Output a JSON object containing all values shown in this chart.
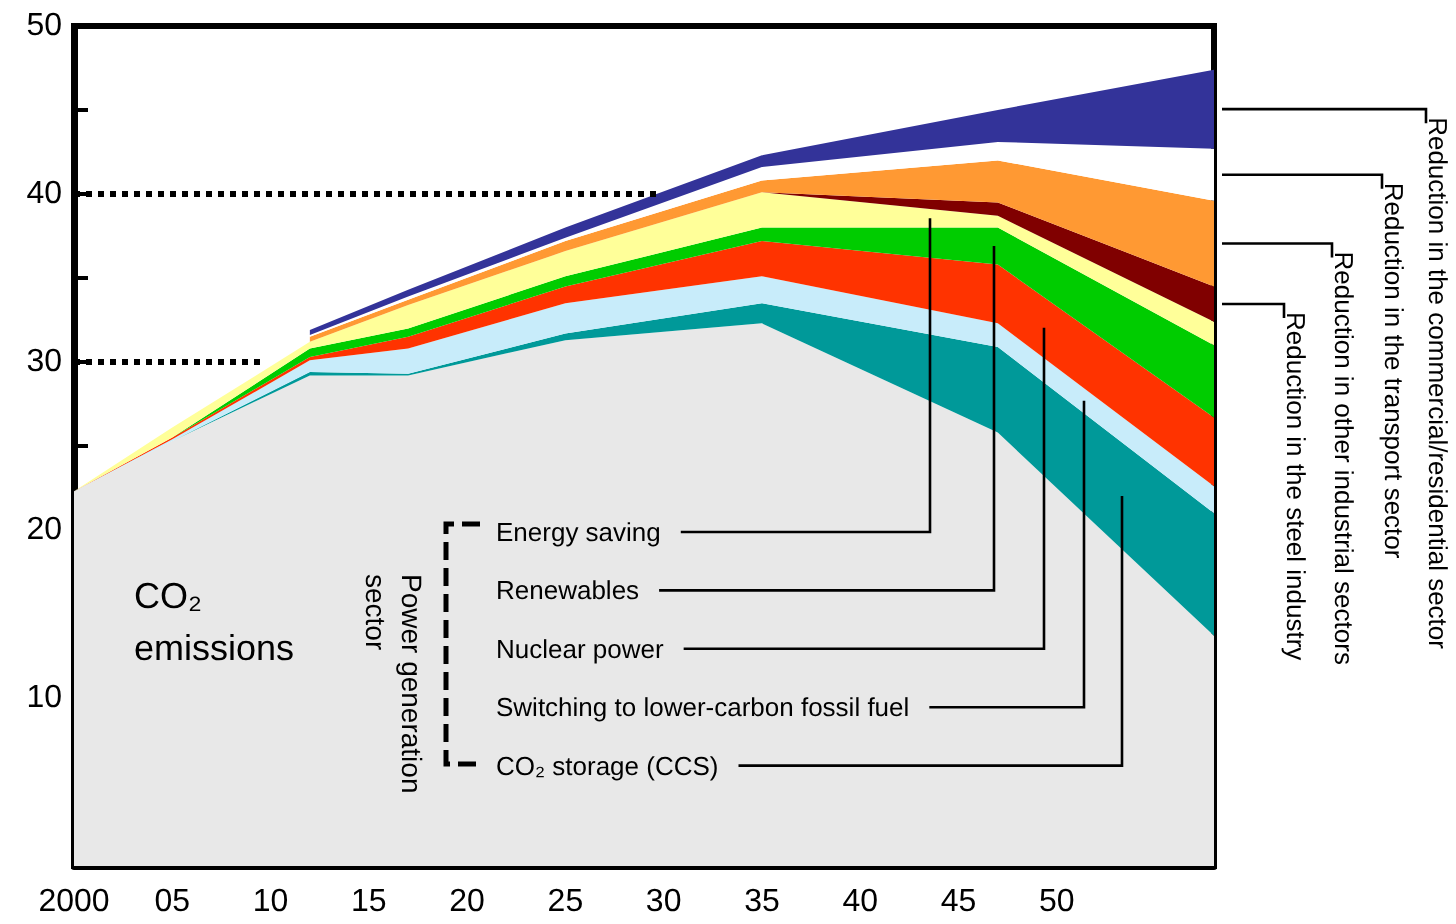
{
  "chart_data": {
    "type": "area",
    "stacked": true,
    "x": [
      2000,
      2005,
      2012,
      2017,
      2025,
      2035,
      2047,
      2058
    ],
    "xlim": [
      2000,
      2058
    ],
    "xticks": [
      {
        "value": 2000,
        "label": "2000"
      },
      {
        "value": 2005,
        "label": "05"
      },
      {
        "value": 2010,
        "label": "10"
      },
      {
        "value": 2015,
        "label": "15"
      },
      {
        "value": 2020,
        "label": "20"
      },
      {
        "value": 2025,
        "label": "25"
      },
      {
        "value": 2030,
        "label": "30"
      },
      {
        "value": 2035,
        "label": "35"
      },
      {
        "value": 2040,
        "label": "40"
      },
      {
        "value": 2045,
        "label": "45"
      },
      {
        "value": 2050,
        "label": "50"
      }
    ],
    "ylim": [
      0,
      50
    ],
    "yticks": [
      {
        "value": 5,
        "label": null
      },
      10,
      {
        "value": 15,
        "label": null
      },
      20,
      {
        "value": 25,
        "label": null
      },
      30,
      {
        "value": 35,
        "label": null
      },
      40,
      {
        "value": 45,
        "label": null
      },
      50
    ],
    "series": [
      {
        "name": "CO₂ emissions",
        "color": "#e8e8e8",
        "values": [
          22.3,
          25.3,
          29.2,
          29.2,
          31.3,
          32.3,
          25.8,
          13.7
        ]
      },
      {
        "name": "CO₂ storage (CCS)",
        "color": "#009999",
        "values": [
          0,
          0,
          0.2,
          0.1,
          0.4,
          1.2,
          5.1,
          7.3
        ]
      },
      {
        "name": "Switching to lower-carbon fossil fuel",
        "color": "#c8ecfa",
        "values": [
          0,
          0.1,
          0.7,
          1.5,
          1.8,
          1.6,
          1.4,
          1.6
        ]
      },
      {
        "name": "Nuclear power",
        "color": "#ff3300",
        "values": [
          0,
          0.1,
          0.2,
          0.7,
          1.0,
          2.1,
          3.5,
          4.1
        ]
      },
      {
        "name": "Renewables",
        "color": "#00cc00",
        "values": [
          0,
          0,
          0.5,
          0.5,
          0.6,
          0.8,
          2.2,
          4.3
        ]
      },
      {
        "name": "Energy saving",
        "color": "#ffff99",
        "values": [
          0,
          0.6,
          0.4,
          1.4,
          1.5,
          2.1,
          0.7,
          1.4
        ]
      },
      {
        "name": "Reduction in the steel industry",
        "color": "#800000",
        "values": [
          null,
          null,
          null,
          null,
          null,
          0,
          0.8,
          2.1
        ]
      },
      {
        "name": "Reduction in other industrial sectors",
        "color": "#ff9933",
        "values": [
          null,
          null,
          0.3,
          0.3,
          0.6,
          0.7,
          2.5,
          5.1
        ]
      },
      {
        "name": "Reduction in the transport sector",
        "color": "#ffffff",
        "values": [
          null,
          null,
          0.1,
          0.2,
          0.2,
          0.8,
          1.1,
          3.1
        ]
      },
      {
        "name": "Reduction in the commercial/residential sector",
        "color": "#333399",
        "values": [
          null,
          null,
          0.3,
          0.4,
          0.6,
          0.7,
          1.9,
          4.7
        ]
      }
    ],
    "ref_lines": [
      {
        "axis": "y",
        "value": 40,
        "line_style": "dotted"
      },
      {
        "axis": "y",
        "value": 30,
        "line_style": "dotted"
      }
    ],
    "annotations": [
      "Power generation sector"
    ]
  }
}
